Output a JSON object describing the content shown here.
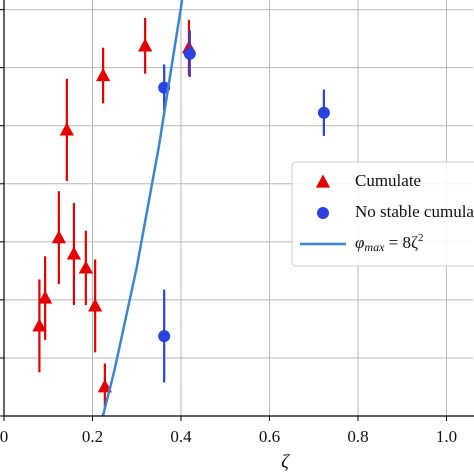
{
  "chart_data": {
    "type": "scatter",
    "x_label": "ζ",
    "xlim": [
      0,
      1.06
    ],
    "xticks": [
      0,
      0.2,
      0.4,
      0.6,
      0.8,
      {
        "value": 1.0,
        "label": "1.0"
      }
    ],
    "ylim": [
      0.4,
      1.3
    ],
    "yticks": [
      0.4,
      0.525,
      0.65,
      0.775,
      0.9,
      1.025,
      1.15,
      1.275
    ],
    "grid": true,
    "legend": "right",
    "series": [
      {
        "name": "Cumulate",
        "type": "scatter",
        "marker": "triangle",
        "color": "#e60000",
        "x": [
          0.08,
          0.093,
          0.124,
          0.142,
          0.158,
          0.185,
          0.206,
          0.228,
          0.224,
          0.319,
          0.418
        ],
        "values": [
          0.594,
          0.654,
          0.784,
          1.016,
          0.749,
          0.719,
          0.637,
          0.463,
          1.133,
          1.197,
          1.193
        ],
        "errors": [
          0.1,
          0.09,
          0.1,
          0.11,
          0.11,
          0.08,
          0.1,
          0.05,
          0.06,
          0.06,
          0.06
        ]
      },
      {
        "name": "No stable cumulate",
        "type": "scatter",
        "marker": "circle",
        "color": "#2a42e0",
        "x": [
          0.362,
          0.42,
          0.362,
          0.723
        ],
        "values": [
          1.107,
          1.18,
          0.572,
          1.053
        ],
        "errors": [
          0.05,
          0.05,
          0.1,
          0.05
        ]
      },
      {
        "name": [
          "φ",
          "max",
          " = 8ζ",
          "2"
        ],
        "type": "line",
        "color": "#3b86d1",
        "x": [
          0.2236,
          0.25,
          0.3,
          0.35,
          0.4,
          0.41
        ],
        "values": [
          0.4,
          0.5,
          0.72,
          0.98,
          1.28,
          1.3448
        ]
      }
    ]
  }
}
